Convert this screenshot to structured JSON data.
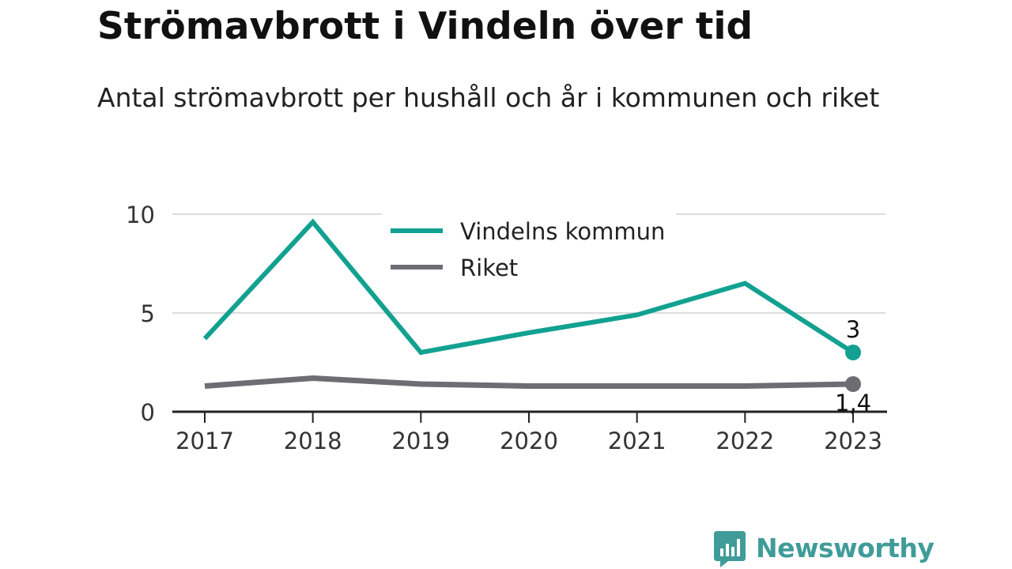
{
  "title": "Strömavbrott i Vindeln över tid",
  "subtitle": "Antal strömavbrott per hushåll och år i kommunen och riket",
  "brand": {
    "name": "Newsworthy",
    "color": "#3f9c99",
    "icon": "bar-chart-speech-bubble-icon"
  },
  "chart_data": {
    "type": "line",
    "x": [
      "2017",
      "2018",
      "2019",
      "2020",
      "2021",
      "2022",
      "2023"
    ],
    "ylim": [
      0,
      10
    ],
    "yticks": [
      0,
      5,
      10
    ],
    "grid": true,
    "legend_position": "top-center",
    "series": [
      {
        "name": "Vindelns kommun",
        "color": "#12a191",
        "values": [
          3.7,
          9.6,
          3.0,
          4.0,
          4.9,
          6.5,
          3.0
        ],
        "end_label": "3"
      },
      {
        "name": "Riket",
        "color": "#6e6d73",
        "values": [
          1.3,
          1.7,
          1.4,
          1.3,
          1.3,
          1.3,
          1.4
        ],
        "end_label": "1,4"
      }
    ]
  }
}
